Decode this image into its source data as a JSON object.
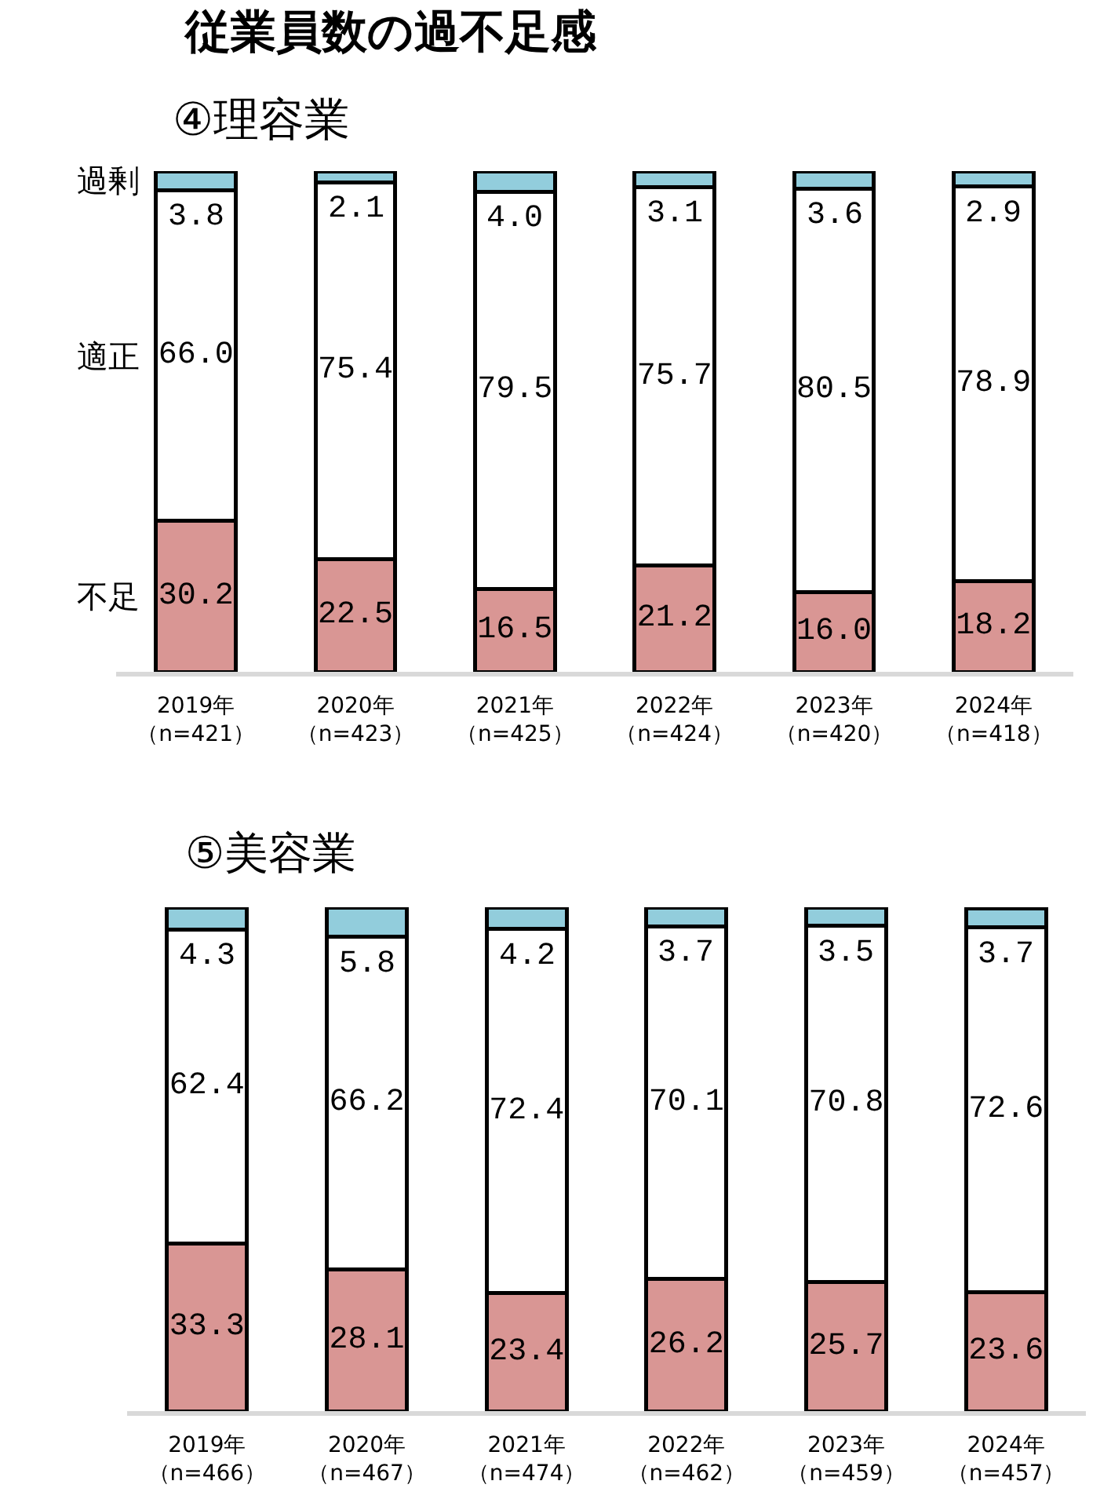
{
  "chart_data": [
    {
      "type": "bar",
      "title": "従業員数の過不足感",
      "subtitle": "④理容業",
      "stacked": true,
      "tick_labels": "x",
      "categories": [
        "2019年（n=421）",
        "2020年（n=423）",
        "2021年（n=425）",
        "2022年（n=424）",
        "2023年（n=420）",
        "2024年（n=418）"
      ],
      "series": [
        {
          "name": "不足",
          "color": "#d99694",
          "values": [
            30.2,
            22.5,
            16.5,
            21.2,
            16.0,
            18.2
          ],
          "value_labels": [
            "30.2",
            "22.5",
            "16.5",
            "21.2",
            "16.0",
            "18.2"
          ]
        },
        {
          "name": "適正",
          "color": "#ffffff",
          "values": [
            66.0,
            75.4,
            79.5,
            75.7,
            80.5,
            78.9
          ],
          "value_labels": [
            "66.0",
            "75.4",
            "79.5",
            "75.7",
            "80.5",
            "78.9"
          ]
        },
        {
          "name": "過剰",
          "color": "#92cddc",
          "values": [
            3.8,
            2.1,
            4.0,
            3.1,
            3.6,
            2.9
          ],
          "value_labels": [
            "3.8",
            "2.1",
            "4.0",
            "3.1",
            "3.6",
            "2.9"
          ]
        }
      ]
    },
    {
      "type": "bar",
      "title": "⑤美容業",
      "stacked": true,
      "tick_labels": "x",
      "categories": [
        "2019年（n=466）",
        "2020年（n=467）",
        "2021年（n=474）",
        "2022年（n=462）",
        "2023年（n=459）",
        "2024年（n=457）"
      ],
      "series": [
        {
          "color": "#d99694",
          "values": [
            33.3,
            28.1,
            23.4,
            26.2,
            25.7,
            23.6
          ],
          "value_labels": [
            "33.3",
            "28.1",
            "23.4",
            "26.2",
            "25.7",
            "23.6"
          ]
        },
        {
          "color": "#ffffff",
          "values": [
            62.4,
            66.2,
            72.4,
            70.1,
            70.8,
            72.6
          ],
          "value_labels": [
            "62.4",
            "66.2",
            "72.4",
            "70.1",
            "70.8",
            "72.6"
          ]
        },
        {
          "color": "#92cddc",
          "values": [
            4.3,
            5.8,
            4.2,
            3.7,
            3.5,
            3.7
          ],
          "value_labels": [
            "4.3",
            "5.8",
            "4.2",
            "3.7",
            "3.5",
            "3.7"
          ]
        }
      ]
    }
  ]
}
